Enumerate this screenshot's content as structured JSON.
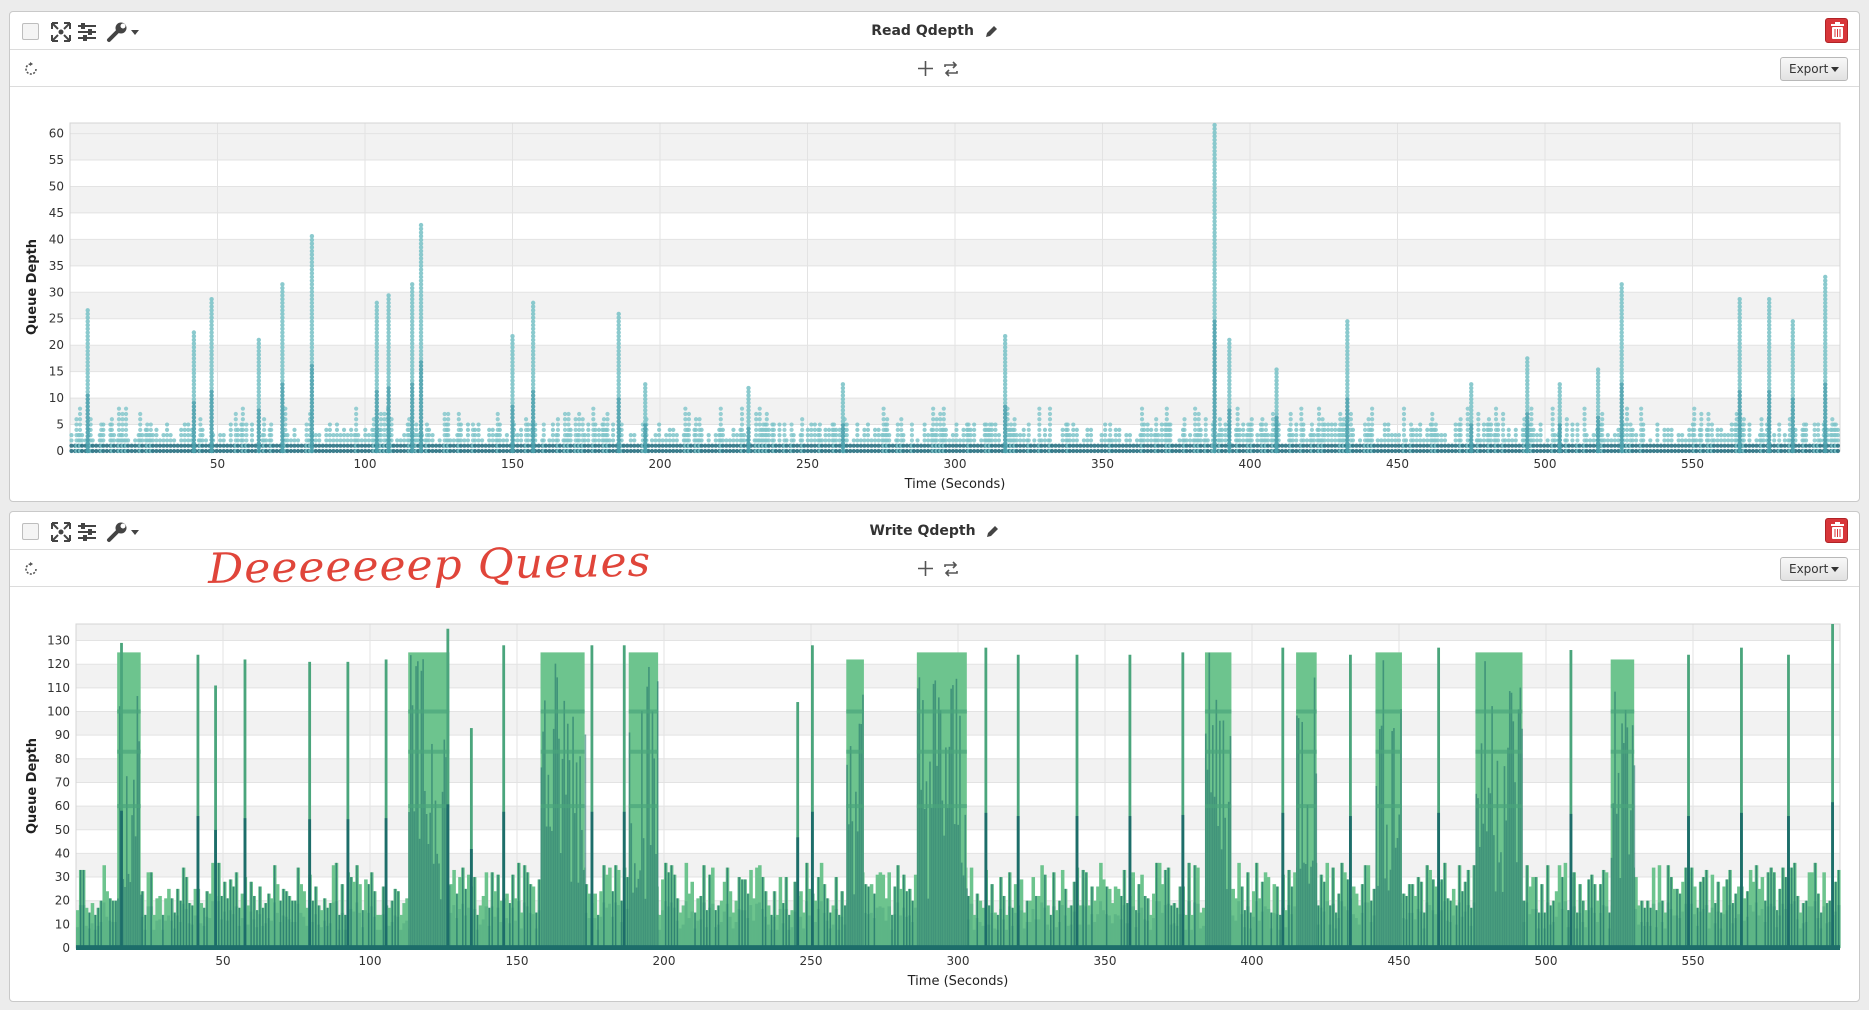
{
  "panels": [
    {
      "id": "read",
      "title": "Read Qdepth",
      "export_label": "Export",
      "chart_data": {
        "type": "scatter",
        "title": "",
        "xlabel": "Time (Seconds)",
        "ylabel": "Queue Depth",
        "xlim": [
          0,
          600
        ],
        "ylim": [
          0,
          62
        ],
        "xticks": [
          50,
          100,
          150,
          200,
          250,
          300,
          350,
          400,
          450,
          500,
          550
        ],
        "yticks": [
          0,
          5,
          10,
          15,
          20,
          25,
          30,
          35,
          40,
          45,
          50,
          55,
          60
        ],
        "grid": true,
        "baseline_max": 4,
        "spikes": [
          {
            "x": 6,
            "y": 27
          },
          {
            "x": 42,
            "y": 23
          },
          {
            "x": 48,
            "y": 29
          },
          {
            "x": 64,
            "y": 21
          },
          {
            "x": 72,
            "y": 32
          },
          {
            "x": 82,
            "y": 41
          },
          {
            "x": 104,
            "y": 28
          },
          {
            "x": 108,
            "y": 30
          },
          {
            "x": 116,
            "y": 32
          },
          {
            "x": 119,
            "y": 43
          },
          {
            "x": 150,
            "y": 22
          },
          {
            "x": 157,
            "y": 28
          },
          {
            "x": 186,
            "y": 26
          },
          {
            "x": 195,
            "y": 13
          },
          {
            "x": 230,
            "y": 12
          },
          {
            "x": 262,
            "y": 13
          },
          {
            "x": 317,
            "y": 22
          },
          {
            "x": 388,
            "y": 62
          },
          {
            "x": 393,
            "y": 21
          },
          {
            "x": 409,
            "y": 16
          },
          {
            "x": 433,
            "y": 25
          },
          {
            "x": 475,
            "y": 13
          },
          {
            "x": 494,
            "y": 18
          },
          {
            "x": 505,
            "y": 13
          },
          {
            "x": 518,
            "y": 16
          },
          {
            "x": 526,
            "y": 32
          },
          {
            "x": 566,
            "y": 29
          },
          {
            "x": 576,
            "y": 29
          },
          {
            "x": 584,
            "y": 25
          },
          {
            "x": 595,
            "y": 33
          }
        ],
        "colors": {
          "light": "#7ec4c9",
          "mid": "#4aa1ad",
          "dark": "#1f6b7c"
        }
      }
    },
    {
      "id": "write",
      "title": "Write Qdepth",
      "export_label": "Export",
      "annotation": "Deeeeeeep Queues",
      "chart_data": {
        "type": "heatmap",
        "title": "",
        "xlabel": "Time (Seconds)",
        "ylabel": "Queue Depth",
        "xlim": [
          0,
          600
        ],
        "ylim": [
          0,
          137
        ],
        "xticks": [
          50,
          100,
          150,
          200,
          250,
          300,
          350,
          400,
          450,
          500,
          550
        ],
        "yticks": [
          0,
          10,
          20,
          30,
          40,
          50,
          60,
          70,
          80,
          90,
          100,
          110,
          120,
          130
        ],
        "grid": true,
        "baseline_max": 25,
        "dense_blocks": [
          {
            "x0": 14,
            "x1": 22,
            "y": 125
          },
          {
            "x0": 113,
            "x1": 127,
            "y": 125
          },
          {
            "x0": 158,
            "x1": 173,
            "y": 125
          },
          {
            "x0": 188,
            "x1": 198,
            "y": 125
          },
          {
            "x0": 262,
            "x1": 268,
            "y": 122
          },
          {
            "x0": 286,
            "x1": 303,
            "y": 125
          },
          {
            "x0": 384,
            "x1": 393,
            "y": 125
          },
          {
            "x0": 415,
            "x1": 422,
            "y": 125
          },
          {
            "x0": 442,
            "x1": 451,
            "y": 125
          },
          {
            "x0": 476,
            "x1": 492,
            "y": 125
          },
          {
            "x0": 522,
            "x1": 530,
            "y": 122
          }
        ],
        "spikes": [
          {
            "x": 15,
            "y": 129
          },
          {
            "x": 41,
            "y": 124
          },
          {
            "x": 47,
            "y": 111
          },
          {
            "x": 57,
            "y": 122
          },
          {
            "x": 79,
            "y": 121
          },
          {
            "x": 92,
            "y": 121
          },
          {
            "x": 105,
            "y": 122
          },
          {
            "x": 126,
            "y": 135
          },
          {
            "x": 134,
            "y": 93
          },
          {
            "x": 145,
            "y": 128
          },
          {
            "x": 175,
            "y": 128
          },
          {
            "x": 186,
            "y": 128
          },
          {
            "x": 245,
            "y": 104
          },
          {
            "x": 250,
            "y": 128
          },
          {
            "x": 309,
            "y": 127
          },
          {
            "x": 320,
            "y": 124
          },
          {
            "x": 340,
            "y": 124
          },
          {
            "x": 358,
            "y": 124
          },
          {
            "x": 376,
            "y": 125
          },
          {
            "x": 410,
            "y": 127
          },
          {
            "x": 433,
            "y": 124
          },
          {
            "x": 463,
            "y": 127
          },
          {
            "x": 508,
            "y": 126
          },
          {
            "x": 548,
            "y": 124
          },
          {
            "x": 566,
            "y": 127
          },
          {
            "x": 582,
            "y": 124
          },
          {
            "x": 597,
            "y": 137
          }
        ],
        "colors": {
          "light": "#6dc48e",
          "mid": "#4aa57c",
          "dark": "#1d6d6a"
        }
      }
    }
  ]
}
